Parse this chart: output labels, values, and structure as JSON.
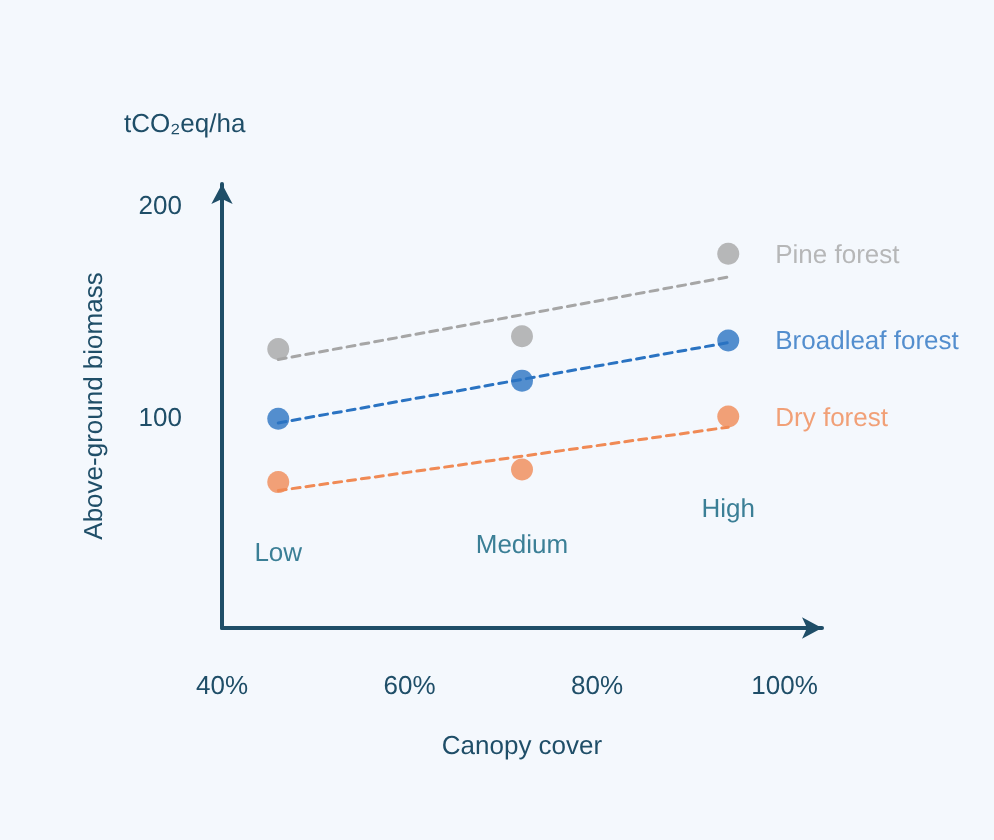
{
  "chart_data": {
    "type": "scatter",
    "xlabel": "Canopy cover",
    "ylabel": "Above-ground biomass",
    "annotations": [
      "tCO₂eq/ha",
      "Low",
      "Medium",
      "High"
    ],
    "xlim": [
      40,
      104
    ],
    "xticks": [
      {
        "value": 40,
        "label": "40%"
      },
      {
        "value": 60,
        "label": "60%"
      },
      {
        "value": 80,
        "label": "80%"
      },
      {
        "value": 100,
        "label": "100%"
      }
    ],
    "ylim": [
      0,
      210
    ],
    "yticks": [
      100,
      200
    ],
    "grid": false,
    "legend": false,
    "marker": "circle",
    "series": [
      {
        "name": "Pine forest",
        "color": "#a6a6a6",
        "x": [
          46,
          72,
          94
        ],
        "values": [
          132,
          138,
          177
        ]
      },
      {
        "name": "Broadleaf forest",
        "color": "#2a73c2",
        "x": [
          46,
          72,
          94
        ],
        "values": [
          99,
          117,
          136
        ]
      },
      {
        "name": "Dry forest",
        "color": "#f08a55",
        "x": [
          46,
          72,
          94
        ],
        "values": [
          69,
          75,
          100
        ]
      },
      {
        "type": "line",
        "color": "#a6a6a6",
        "x": [
          46,
          94
        ],
        "values": [
          127,
          166
        ],
        "line_style": "dashed",
        "marker": "none"
      },
      {
        "type": "line",
        "color": "#2a73c2",
        "x": [
          46,
          94
        ],
        "values": [
          97,
          135
        ],
        "line_style": "dashed",
        "marker": "none"
      },
      {
        "type": "line",
        "color": "#f08a55",
        "x": [
          46,
          94
        ],
        "values": [
          65,
          95
        ],
        "line_style": "dashed",
        "marker": "none"
      }
    ]
  }
}
